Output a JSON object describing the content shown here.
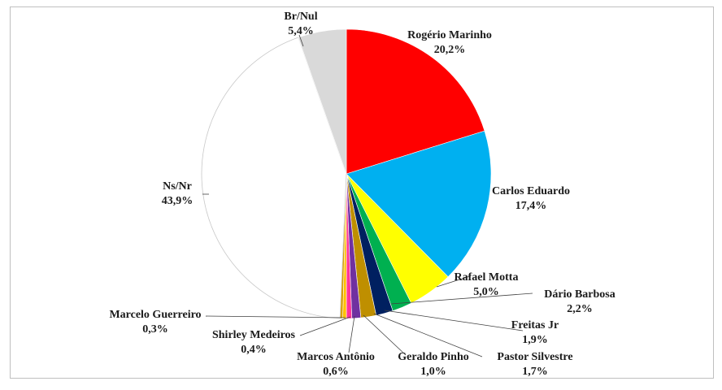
{
  "chart_data": {
    "type": "pie",
    "title": "",
    "start": "12 o'clock",
    "direction": "clockwise",
    "slices": [
      {
        "name": "Rogério Marinho",
        "value": 20.2,
        "label": "20,2%",
        "color": "#ff0000"
      },
      {
        "name": "Carlos Eduardo",
        "value": 17.4,
        "label": "17,4%",
        "color": "#00b0f0"
      },
      {
        "name": "Rafael Motta",
        "value": 5.0,
        "label": "5,0%",
        "color": "#ffff00"
      },
      {
        "name": "Dário Barbosa",
        "value": 2.2,
        "label": "2,2%",
        "color": "#00b050"
      },
      {
        "name": "Freitas Jr",
        "value": 1.9,
        "label": "1,9%",
        "color": "#002060"
      },
      {
        "name": "Pastor Silvestre",
        "value": 1.7,
        "label": "1,7%",
        "color": "#bf8f00"
      },
      {
        "name": "Geraldo Pinho",
        "value": 1.0,
        "label": "1,0%",
        "color": "#7030a0"
      },
      {
        "name": "Marcos Antônio",
        "value": 0.6,
        "label": "0,6%",
        "color": "#ff3399"
      },
      {
        "name": "Shirley Medeiros",
        "value": 0.4,
        "label": "0,4%",
        "color": "#ffc000"
      },
      {
        "name": "Marcelo Guerreiro",
        "value": 0.3,
        "label": "0,3%",
        "color": "#d9a000"
      },
      {
        "name": "Ns/Nr",
        "value": 43.9,
        "label": "43,9%",
        "color": "#ffffff"
      },
      {
        "name": "Br/Nul",
        "value": 5.4,
        "label": "5,4%",
        "color": "#d9d9d9"
      }
    ]
  }
}
